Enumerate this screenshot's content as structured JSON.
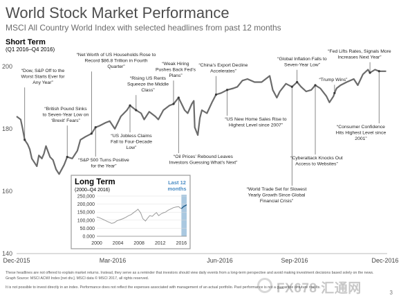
{
  "title": "World Stock Market Performance",
  "subtitle": "MSCI All Country World Index with selected headlines from past 12 months",
  "period_label": "Short Term",
  "period_range": "(Q1 2016–Q4 2016)",
  "chart_data": [
    {
      "type": "line",
      "x_ticks": [
        "Dec-2015",
        "Mar-2016",
        "Jun-2016",
        "Sep-2016",
        "Dec-2016"
      ],
      "y_ticks": [
        140,
        160,
        180,
        200
      ],
      "ylim": [
        140,
        204
      ],
      "series": [
        {
          "color": "#6b6b6b",
          "dates": [
            "2015-12-31",
            "2016-01-04",
            "2016-01-06",
            "2016-01-08",
            "2016-01-11",
            "2016-01-13",
            "2016-01-15",
            "2016-01-20",
            "2016-01-22",
            "2016-01-25",
            "2016-01-27",
            "2016-01-29",
            "2016-02-02",
            "2016-02-05",
            "2016-02-08",
            "2016-02-11",
            "2016-02-16",
            "2016-02-19",
            "2016-02-24",
            "2016-02-29",
            "2016-03-03",
            "2016-03-08",
            "2016-03-14",
            "2016-03-18",
            "2016-03-22",
            "2016-03-28",
            "2016-04-01",
            "2016-04-06",
            "2016-04-12",
            "2016-04-18",
            "2016-04-21",
            "2016-04-27",
            "2016-05-02",
            "2016-05-05",
            "2016-05-10",
            "2016-05-16",
            "2016-05-19",
            "2016-05-24",
            "2016-05-30",
            "2016-06-03",
            "2016-06-08",
            "2016-06-14",
            "2016-06-17",
            "2016-06-21",
            "2016-06-23",
            "2016-06-24",
            "2016-06-27",
            "2016-06-29",
            "2016-07-01",
            "2016-07-06",
            "2016-07-11",
            "2016-07-15",
            "2016-07-20",
            "2016-07-26",
            "2016-08-01",
            "2016-08-05",
            "2016-08-10",
            "2016-08-15",
            "2016-08-22",
            "2016-08-29",
            "2016-09-06",
            "2016-09-09",
            "2016-09-13",
            "2016-09-16",
            "2016-09-22",
            "2016-09-28",
            "2016-10-03",
            "2016-10-07",
            "2016-10-12",
            "2016-10-17",
            "2016-10-21",
            "2016-10-26",
            "2016-11-01",
            "2016-11-04",
            "2016-11-08",
            "2016-11-09",
            "2016-11-11",
            "2016-11-15",
            "2016-11-21",
            "2016-11-28",
            "2016-12-02",
            "2016-12-07",
            "2016-12-12",
            "2016-12-14",
            "2016-12-19",
            "2016-12-23",
            "2016-12-30"
          ],
          "values": [
            184.0,
            183.0,
            180.0,
            176.5,
            175.0,
            173.5,
            170.5,
            168.0,
            171.5,
            170.5,
            172.0,
            174.5,
            171.0,
            170.0,
            167.0,
            165.5,
            168.5,
            171.0,
            170.5,
            173.0,
            176.5,
            177.5,
            178.5,
            180.5,
            181.0,
            182.0,
            182.5,
            180.0,
            184.0,
            186.0,
            187.5,
            186.0,
            185.0,
            183.0,
            185.5,
            184.0,
            183.0,
            186.0,
            187.5,
            188.0,
            190.0,
            186.0,
            185.0,
            188.0,
            189.0,
            180.5,
            178.0,
            183.5,
            186.0,
            185.0,
            188.5,
            191.0,
            191.5,
            192.5,
            193.0,
            193.5,
            195.5,
            196.0,
            195.0,
            195.0,
            197.0,
            192.5,
            190.0,
            192.0,
            194.5,
            193.5,
            195.0,
            193.5,
            192.0,
            192.5,
            194.0,
            193.0,
            190.5,
            188.5,
            190.5,
            191.5,
            193.0,
            194.0,
            195.0,
            196.0,
            194.0,
            197.5,
            199.0,
            198.0,
            199.0,
            198.5,
            198.5
          ]
        }
      ]
    },
    {
      "type": "line",
      "title": "Long Term",
      "range_label": "(2000–Q4 2016)",
      "highlight_label": "Last 12 months",
      "x_ticks": [
        "2000",
        "2004",
        "2008",
        "2012",
        "2016"
      ],
      "y_ticks": [
        "0.000",
        "50.000",
        "100,000",
        "150,000",
        "200,000",
        "250,000"
      ],
      "y_tick_values": [
        0,
        50000,
        100000,
        150000,
        200000,
        250000
      ],
      "ylim": [
        0,
        250000
      ],
      "xlim": [
        2000,
        2017
      ],
      "highlight_range": [
        2016,
        2017
      ],
      "series": [
        {
          "color": "#9a9a9a",
          "x": [
            2000.0,
            2000.5,
            2001.0,
            2001.5,
            2002.0,
            2002.5,
            2002.8,
            2003.3,
            2003.8,
            2004.5,
            2005.0,
            2005.5,
            2006.0,
            2006.5,
            2007.0,
            2007.5,
            2007.8,
            2008.3,
            2008.7,
            2009.2,
            2009.6,
            2010.0,
            2010.5,
            2011.0,
            2011.3,
            2011.7,
            2012.2,
            2012.6,
            2013.0,
            2013.5,
            2014.0,
            2014.5,
            2015.0,
            2015.5,
            2015.8,
            2016.0
          ],
          "y": [
            120000,
            115000,
            108000,
            100000,
            92000,
            85000,
            80000,
            84000,
            96000,
            104000,
            110000,
            118000,
            128000,
            135000,
            148000,
            160000,
            168000,
            145000,
            110000,
            95000,
            112000,
            128000,
            124000,
            140000,
            147000,
            128000,
            140000,
            146000,
            150000,
            162000,
            170000,
            178000,
            182000,
            184000,
            175000,
            172000
          ]
        },
        {
          "color": "#1f5c8a",
          "x": [
            2016.0,
            2016.2,
            2016.4,
            2016.6,
            2016.8,
            2017.0
          ],
          "y": [
            172000,
            178000,
            184000,
            188000,
            192000,
            196000
          ]
        }
      ]
    }
  ],
  "annotations": [
    {
      "label": "“Dow, S&P Off to the Worst Starts Ever for Any Year”",
      "date": "2016-01-08",
      "value": 176.5
    },
    {
      "label": "“British Pound Sinks to Seven-Year Low on ‘Brexit’ Fears”",
      "date": "2016-02-19",
      "value": 171.0
    },
    {
      "label": "“Net Worth of US Households Rose to Record $86.8 Trillion in Fourth Quarter”",
      "date": "2016-03-14",
      "value": 178.5
    },
    {
      "label": "“S&P 500 Turns Positive for the Year”",
      "date": "2016-03-18",
      "value": 180.5
    },
    {
      "label": "“US Jobless Claims Fall to Four-Decade Low”",
      "date": "2016-04-21",
      "value": 187.5
    },
    {
      "label": "“Rising US Rents Squeeze the Middle Class”",
      "date": "2016-04-27",
      "value": 186.0
    },
    {
      "label": "“Weak Hiring Pushes Back Fed’s Plans”",
      "date": "2016-06-03",
      "value": 188.0
    },
    {
      "label": "“Oil Prices’ Rebound Leaves Investors Guessing What’s Next”",
      "date": "2016-06-08",
      "value": 190.0
    },
    {
      "label": "“China’s Export Decline Accelerates”",
      "date": "2016-07-15",
      "value": 191.0
    },
    {
      "label": "“US New Home Sales Rise to Highest Level since 2007”",
      "date": "2016-07-26",
      "value": 192.5
    },
    {
      "label": "“World Trade Set for Slowest Yearly Growth Since Global Financial Crisis”",
      "date": "2016-09-28",
      "value": 193.5
    },
    {
      "label": "“Global Inflation Falls to Seven-Year Low”",
      "date": "2016-10-03",
      "value": 195.0
    },
    {
      "label": "“Cyberattack Knocks Out Access to Websites”",
      "date": "2016-10-21",
      "value": 194.0
    },
    {
      "label": "“Trump Wins”",
      "date": "2016-11-09",
      "value": 191.5
    },
    {
      "label": "“Fed Lifts Rates, Signals More Increases Next Year”",
      "date": "2016-12-14",
      "value": 198.0
    },
    {
      "label": "“Consumer Confidence Hits Highest Level since 2001”",
      "date": "2016-12-23",
      "value": 198.5
    }
  ],
  "footnotes": [
    "These headlines are not offered to explain market returns. Instead, they serve as a reminder that investors should view daily events from a long-term perspective and avoid making investment decisions based solely on the news.",
    "Graph Source: MSCI ACWI Index [net div.]. MSCI data © MSCI 2017, all rights reserved.",
    "It is not possible to invest directly in an index. Performance does not reflect the expenses associated with management of an actual portfolio. Past performance is not a guarantee of future results."
  ],
  "page_number": "3",
  "watermark_text": "FX678 汇通网"
}
